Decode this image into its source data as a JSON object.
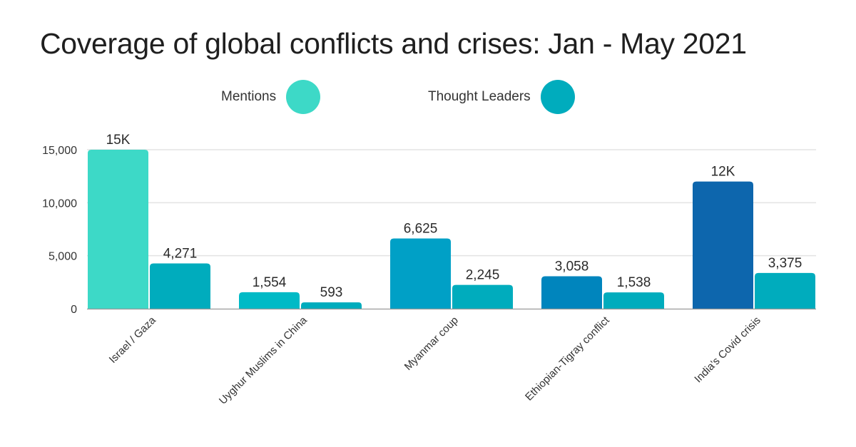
{
  "chart_data": {
    "type": "bar",
    "title": "Coverage of global conflicts and crises: Jan - May 2021",
    "xlabel": "",
    "ylabel": "",
    "ylim": [
      0,
      15000
    ],
    "yticks": [
      "0",
      "5,000",
      "10,000",
      "15,000"
    ],
    "ytick_values": [
      0,
      5000,
      10000,
      15000
    ],
    "grid": true,
    "legend_placement": "top-center",
    "categories": [
      "Israel / Gaza",
      "Uyghur Muslims in China",
      "Myanmar coup",
      "Ethiopian-Tigray conflict",
      "India's Covid crisis"
    ],
    "series": [
      {
        "name": "Mentions",
        "values": [
          15000,
          1554,
          6625,
          3058,
          12000
        ],
        "labels": [
          "15K",
          "1,554",
          "6,625",
          "3,058",
          "12K"
        ],
        "color": "#3DD9C7",
        "bar_colors": [
          "#3DD9C7",
          "#00BAC6",
          "#00A0C6",
          "#0085BD",
          "#0D66AD"
        ]
      },
      {
        "name": "Thought Leaders",
        "values": [
          4271,
          593,
          2245,
          1538,
          3375
        ],
        "labels": [
          "4,271",
          "593",
          "2,245",
          "1,538",
          "3,375"
        ],
        "color": "#00ACBD"
      }
    ]
  }
}
